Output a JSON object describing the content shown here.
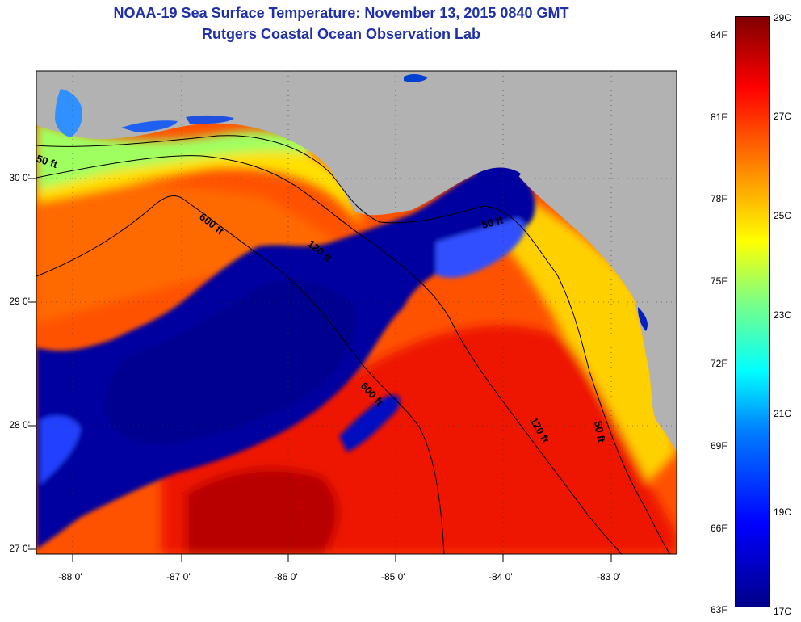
{
  "title_line1": "NOAA-19 Sea Surface Temperature:  November 13, 2015 0840 GMT",
  "title_line2": "Rutgers Coastal Ocean Observation Lab",
  "lat_labels": [
    "30 0'",
    "29 0'",
    "28 0'",
    "27 0'"
  ],
  "lon_labels": [
    "-88 0'",
    "-87 0'",
    "-86 0'",
    "-85 0'",
    "-84 0'",
    "-83 0'"
  ],
  "contour_labels": {
    "c50_west": "50 ft",
    "c600_north": "600 ft",
    "c120_center": "120 ft",
    "c50_east_north": "50 ft",
    "c600_south": "600 ft",
    "c120_east": "120 ft",
    "c50_east": "50 ft"
  },
  "colorbar": {
    "f_labels": [
      "84F",
      "81F",
      "78F",
      "75F",
      "72F",
      "69F",
      "66F",
      "63F"
    ],
    "c_labels": [
      "29C",
      "27C",
      "25C",
      "23C",
      "21C",
      "19C",
      "17C"
    ]
  },
  "colors": {
    "land": "#b2b2b2",
    "cold": "#0000a0",
    "warm": "#ff4000",
    "hot": "#c00000",
    "title": "#1f2fa8"
  }
}
